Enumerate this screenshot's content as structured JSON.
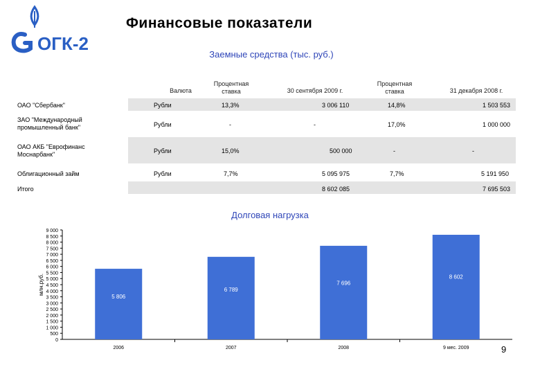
{
  "header": {
    "logo_text": "ОГК-2",
    "title": "Финансовые показатели",
    "subtitle": "Заемные средства (тыс. руб.)"
  },
  "table": {
    "columns": [
      "Валюта",
      "Процентная ставка",
      "30 сентября 2009 г.",
      "Процентная ставка",
      "31 декабря 2008 г."
    ],
    "rows": [
      {
        "name": "ОАО \"Сбербанк\"",
        "currency": "Рубли",
        "rate1": "13,3%",
        "amount1": "3 006 110",
        "rate2": "14,8%",
        "amount2": "1 503 553"
      },
      {
        "name": "ЗАО \"Международный промышленный банк\"",
        "name_line1": "ЗАО \"Международный",
        "name_line2": "промышленный банк\"",
        "currency": "Рубли",
        "rate1": "-",
        "amount1": "-",
        "rate2": "17,0%",
        "amount2": "1 000 000"
      },
      {
        "name": "ОАО АКБ \"Еврофинанс Моснарбанк\"",
        "name_line1": "ОАО АКБ \"Еврофинанс",
        "name_line2": "Моснарбанк\"",
        "currency": "Рубли",
        "rate1": "15,0%",
        "amount1": "500 000",
        "rate2": "-",
        "amount2": "-"
      },
      {
        "name": "Облигационный займ",
        "currency": "Рубли",
        "rate1": "7,7%",
        "amount1": "5 095 975",
        "rate2": "7,7%",
        "amount2": "5 191 950"
      }
    ],
    "total": {
      "name": "Итого",
      "amount1": "8 602 085",
      "amount2": "7 695 503"
    }
  },
  "chart_section_title": "Долговая нагрузка",
  "page_number": "9",
  "colors": {
    "bar": "#3f6fd6",
    "title_blue": "#2e45b8",
    "band": "#e4e4e4",
    "logo_blue": "#2a5fc4"
  },
  "chart_data": {
    "type": "bar",
    "categories": [
      "2006",
      "2007",
      "2008",
      "9 мес. 2009"
    ],
    "values": [
      5806,
      6789,
      7696,
      8602
    ],
    "value_labels": [
      "5 806",
      "6 789",
      "7 696",
      "8 602"
    ],
    "ylabel": "млн.руб.",
    "ylim": [
      0,
      9000
    ],
    "yticks": [
      0,
      500,
      1000,
      1500,
      2000,
      2500,
      3000,
      3500,
      4000,
      4500,
      5000,
      5500,
      6000,
      6500,
      7000,
      7500,
      8000,
      8500,
      9000
    ],
    "ytick_labels": [
      "0",
      "500",
      "1 000",
      "1 500",
      "2 000",
      "2 500",
      "3 000",
      "3 500",
      "4 000",
      "4 500",
      "5 000",
      "5 500",
      "6 000",
      "6 500",
      "7 000",
      "7 500",
      "8 000",
      "8 500",
      "9 000"
    ],
    "grid": false
  }
}
